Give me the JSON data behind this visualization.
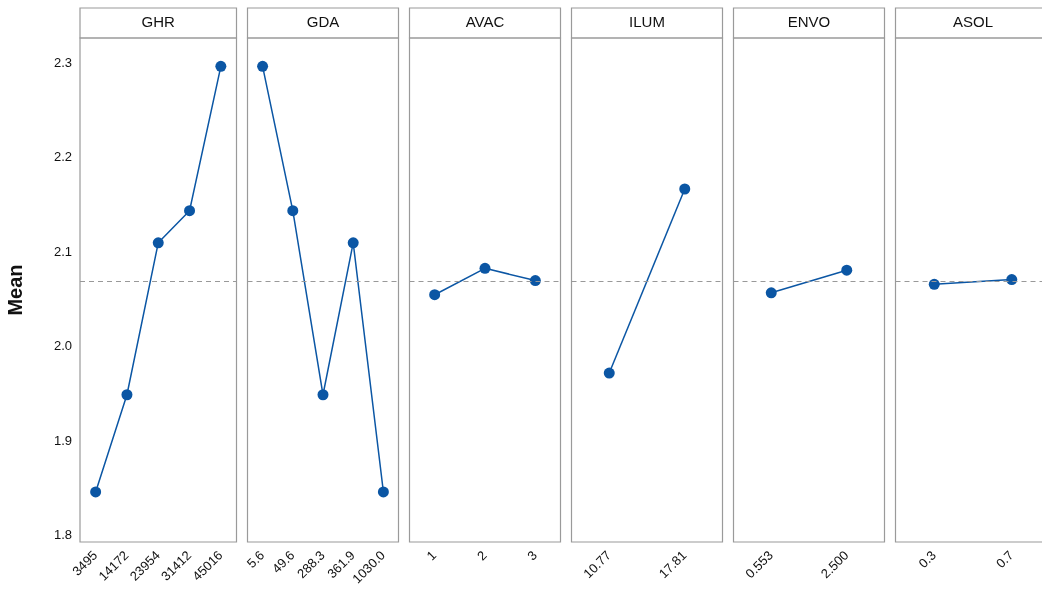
{
  "chart_data": [
    {
      "type": "line",
      "title": "GHR",
      "ylabel": "Mean",
      "categories": [
        "3495",
        "14172",
        "23954",
        "31412",
        "45016"
      ],
      "values": [
        1.846,
        1.949,
        2.11,
        2.144,
        2.297
      ],
      "color": "#0b56a4",
      "marker": "circle",
      "ylim": [
        1.793,
        2.327
      ],
      "yticks": [
        1.8,
        1.9,
        {
          "value": 2,
          "label": "2.0"
        },
        2.1,
        2.2,
        2.3
      ],
      "grid": false,
      "ref_lines": [
        {
          "axis": "y",
          "value": 2.069,
          "color": "#999999",
          "line_style": "dashed"
        }
      ]
    },
    {
      "type": "line",
      "title": "GDA",
      "categories": [
        "5.6",
        "49.6",
        "288.3",
        "361.9",
        "1030.0"
      ],
      "values": [
        2.297,
        2.144,
        1.949,
        2.11,
        1.846
      ],
      "color": "#0b56a4",
      "marker": "circle",
      "ylim": [
        1.793,
        2.327
      ],
      "grid": false,
      "tick_labels": "x",
      "ref_lines": [
        {
          "axis": "y",
          "value": 2.069,
          "color": "#999999",
          "line_style": "dashed"
        }
      ]
    },
    {
      "type": "line",
      "title": "AVAC",
      "categories": [
        "1",
        "2",
        "3"
      ],
      "values": [
        2.055,
        2.083,
        2.07
      ],
      "color": "#0b56a4",
      "marker": "circle",
      "ylim": [
        1.793,
        2.327
      ],
      "grid": false,
      "tick_labels": "x",
      "ref_lines": [
        {
          "axis": "y",
          "value": 2.069,
          "color": "#999999",
          "line_style": "dashed"
        }
      ]
    },
    {
      "type": "line",
      "title": "ILUM",
      "categories": [
        "10.77",
        "17.81"
      ],
      "values": [
        1.972,
        2.167
      ],
      "color": "#0b56a4",
      "marker": "circle",
      "ylim": [
        1.793,
        2.327
      ],
      "grid": false,
      "tick_labels": "x",
      "ref_lines": [
        {
          "axis": "y",
          "value": 2.069,
          "color": "#999999",
          "line_style": "dashed"
        }
      ]
    },
    {
      "type": "line",
      "title": "ENVO",
      "categories": [
        "0.553",
        "2.500"
      ],
      "values": [
        2.057,
        2.081
      ],
      "color": "#0b56a4",
      "marker": "circle",
      "ylim": [
        1.793,
        2.327
      ],
      "grid": false,
      "tick_labels": "x",
      "ref_lines": [
        {
          "axis": "y",
          "value": 2.069,
          "color": "#999999",
          "line_style": "dashed"
        }
      ]
    },
    {
      "type": "line",
      "title": "ASOL",
      "categories": [
        "0.3",
        "0.7"
      ],
      "values": [
        2.066,
        2.071
      ],
      "color": "#0b56a4",
      "marker": "circle",
      "ylim": [
        1.793,
        2.327
      ],
      "grid": false,
      "tick_labels": "x",
      "ref_lines": [
        {
          "axis": "y",
          "value": 2.069,
          "color": "#999999",
          "line_style": "dashed"
        }
      ]
    }
  ]
}
